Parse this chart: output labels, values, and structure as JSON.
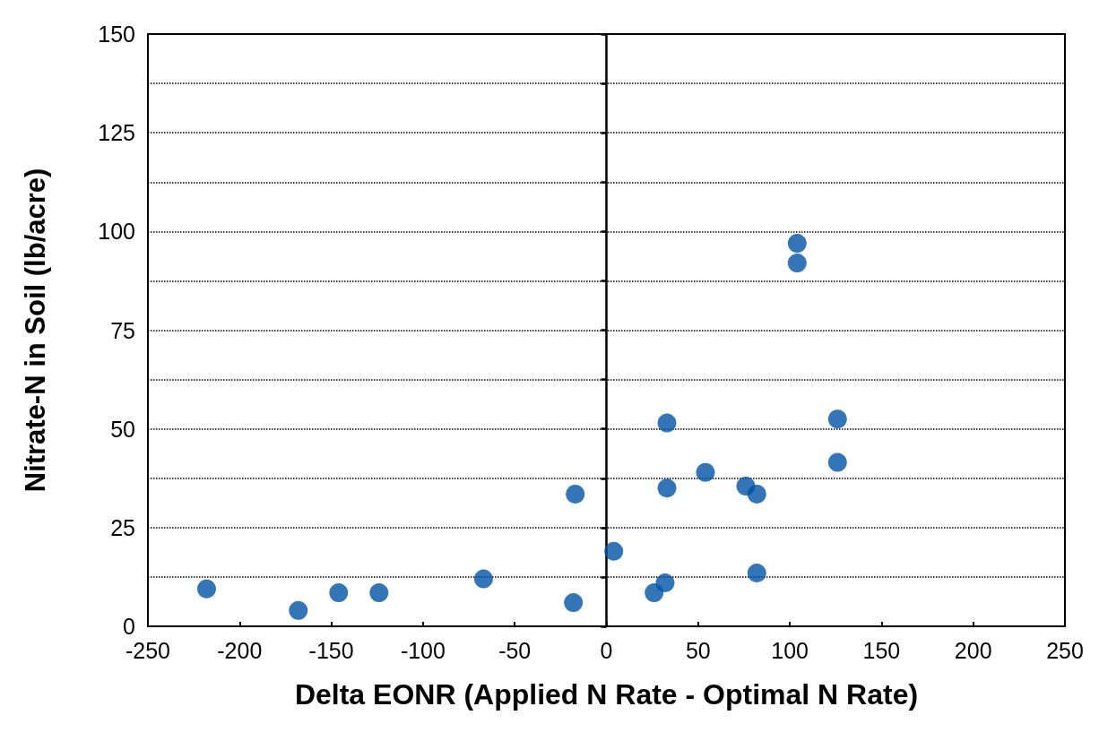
{
  "chart_data": {
    "type": "scatter",
    "xlabel": "Delta EONR (Applied N Rate - Optimal N Rate)",
    "ylabel": "Nitrate-N in Soil (lb/acre)",
    "x": [
      -218,
      -168,
      -146,
      -124,
      -67,
      -18,
      -17,
      4,
      26,
      32,
      33,
      33,
      54,
      76,
      82,
      82,
      104,
      104,
      126,
      126
    ],
    "values": [
      9.5,
      4,
      8.5,
      8.5,
      12,
      6,
      33.5,
      19,
      8.5,
      11,
      35,
      51.5,
      39,
      35.5,
      33.5,
      13.5,
      97,
      92,
      52.5,
      41.5
    ],
    "color": "#0052a5",
    "marker": "circle",
    "grid": "y",
    "xlim": [
      -250,
      250
    ],
    "xticks": [
      -250,
      -200,
      -150,
      -100,
      -50,
      0,
      50,
      100,
      150,
      200,
      250
    ],
    "ylim": [
      0,
      150
    ],
    "yticks": [
      0,
      {
        "value": 12.5,
        "label": null
      },
      25,
      {
        "value": 37.5,
        "label": null
      },
      50,
      {
        "value": 62.5,
        "label": null
      },
      75,
      {
        "value": 87.5,
        "label": null
      },
      100,
      {
        "value": 112.5,
        "label": null
      },
      125,
      {
        "value": 137.5,
        "label": null
      },
      150
    ]
  }
}
